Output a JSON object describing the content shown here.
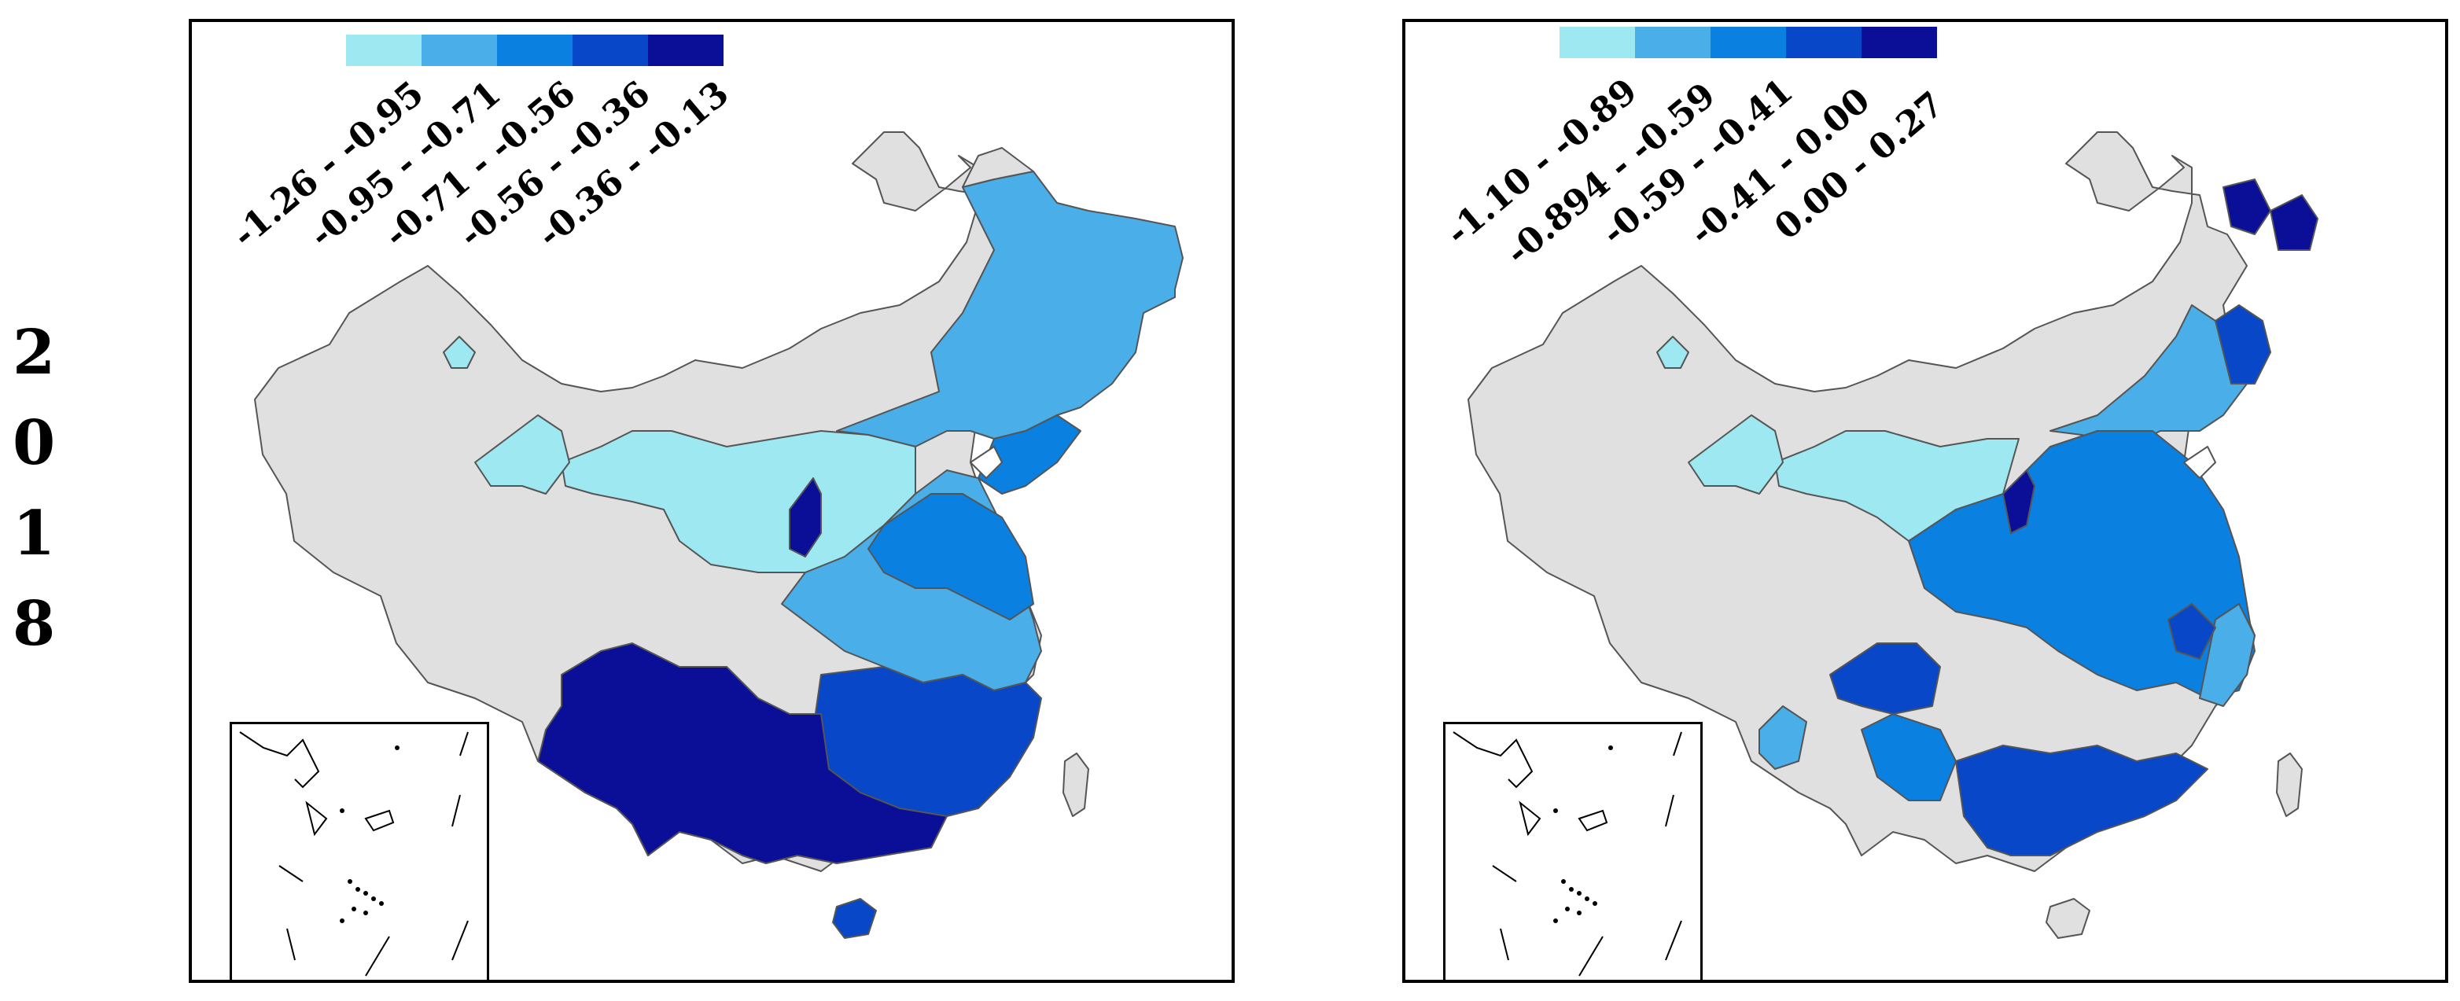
{
  "year_digits": [
    "2",
    "0",
    "1",
    "8"
  ],
  "colors": {
    "c1": "#9ee8f2",
    "c2": "#4aaee8",
    "c3": "#0a80e0",
    "c4": "#0847c8",
    "c5": "#0b0e96",
    "nodata": "#e0e0e0",
    "border": "#555555"
  },
  "maps": [
    {
      "legend": [
        {
          "label": "-1.26 - -0.95",
          "color": "#9ee8f2"
        },
        {
          "label": "-0.95 - -0.71",
          "color": "#4aaee8"
        },
        {
          "label": "-0.71 - -0.56",
          "color": "#0a80e0"
        },
        {
          "label": "-0.56 - -0.36",
          "color": "#0847c8"
        },
        {
          "label": "-0.36 - -0.13",
          "color": "#0b0e96"
        }
      ]
    },
    {
      "legend": [
        {
          "label": "-1.10 - -0.89",
          "color": "#9ee8f2"
        },
        {
          "label": "-0.894 - -0.59",
          "color": "#4aaee8"
        },
        {
          "label": "-0.59 - -0.41",
          "color": "#0a80e0"
        },
        {
          "label": "-0.41 - 0.00",
          "color": "#0847c8"
        },
        {
          "label": "0.00 - 0.27",
          "color": "#0b0e96"
        }
      ]
    }
  ]
}
